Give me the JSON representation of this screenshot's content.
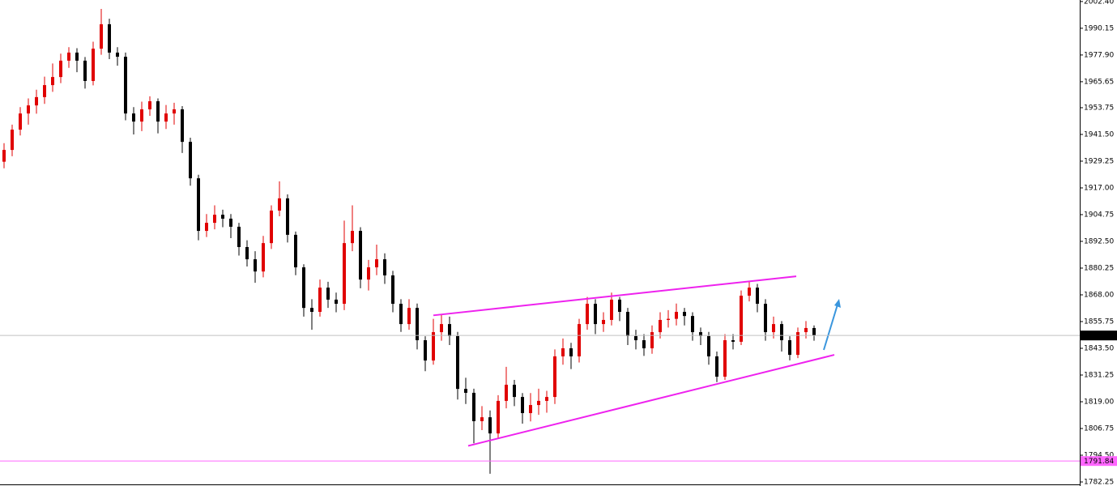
{
  "chart_data": {
    "type": "candlestick",
    "ylim": [
      1780.4,
      2003.1
    ],
    "yticks": [
      {
        "value": 2002.4,
        "label": "2002.40"
      },
      {
        "value": 1990.15,
        "label": "1990.15"
      },
      {
        "value": 1977.9,
        "label": "1977.90"
      },
      {
        "value": 1965.65,
        "label": "1965.65"
      },
      {
        "value": 1953.75,
        "label": "1953.75"
      },
      {
        "value": 1941.5,
        "label": "1941.50"
      },
      {
        "value": 1929.25,
        "label": "1929.25"
      },
      {
        "value": 1917.0,
        "label": "1917.00"
      },
      {
        "value": 1904.75,
        "label": "1904.75"
      },
      {
        "value": 1892.5,
        "label": "1892.50"
      },
      {
        "value": 1880.25,
        "label": "1880.25"
      },
      {
        "value": 1868.0,
        "label": "1868.00"
      },
      {
        "value": 1855.75,
        "label": "1855.75"
      },
      {
        "value": 1843.5,
        "label": "1843.50"
      },
      {
        "value": 1831.25,
        "label": "1831.25"
      },
      {
        "value": 1819.0,
        "label": "1819.00"
      },
      {
        "value": 1806.75,
        "label": "1806.75"
      },
      {
        "value": 1794.5,
        "label": "1794.50"
      },
      {
        "value": 1782.25,
        "label": "1782.25"
      }
    ],
    "up_color": "#e00000",
    "down_color": "#000000",
    "open": [
      1929.0,
      1934.4,
      1943.7,
      1951.1,
      1954.8,
      1958.6,
      1964.1,
      1967.8,
      1975.3,
      1979.0,
      1975.3,
      1966.0,
      1980.8,
      1992.0,
      1979.0,
      1977.1,
      1951.1,
      1947.4,
      1953.0,
      1956.7,
      1947.4,
      1951.1,
      1953.0,
      1938.1,
      1921.4,
      1897.3,
      1901.0,
      1904.7,
      1902.9,
      1899.2,
      1889.9,
      1884.3,
      1878.7,
      1891.7,
      1906.6,
      1912.2,
      1895.5,
      1880.6,
      1862.0,
      1860.2,
      1871.3,
      1865.8,
      1863.9,
      1891.7,
      1897.3,
      1875.0,
      1880.6,
      1884.3,
      1876.9,
      1863.9,
      1854.6,
      1862.0,
      1847.2,
      1837.9,
      1850.9,
      1854.6,
      1849.1,
      1824.9,
      1823.1,
      1810.1,
      1811.9,
      1804.5,
      1819.4,
      1826.8,
      1821.2,
      1813.8,
      1817.5,
      1819.4,
      1821.2,
      1839.8,
      1843.5,
      1839.8,
      1854.6,
      1863.9,
      1854.6,
      1856.5,
      1865.8,
      1860.2,
      1849.1,
      1847.2,
      1843.5,
      1850.9,
      1856.5,
      1857.0,
      1860.2,
      1858.3,
      1850.9,
      1849.1,
      1839.8,
      1830.5,
      1847.2,
      1846.5,
      1867.6,
      1871.3,
      1863.9,
      1850.9,
      1854.6,
      1847.2,
      1840.5,
      1850.9,
      1852.8
    ],
    "high": [
      1937.5,
      1946.0,
      1954.0,
      1958.0,
      1962.0,
      1968.0,
      1974.0,
      1978.5,
      1981.5,
      1981.0,
      1977.0,
      1984.0,
      1999.0,
      1994.5,
      1981.5,
      1979.0,
      1954.0,
      1956.5,
      1959.0,
      1958.0,
      1955.0,
      1956.0,
      1954.5,
      1940.0,
      1923.0,
      1905.0,
      1909.0,
      1907.0,
      1905.0,
      1901.0,
      1893.0,
      1888.0,
      1895.0,
      1909.0,
      1920.0,
      1914.0,
      1897.0,
      1882.0,
      1866.0,
      1875.0,
      1874.0,
      1869.0,
      1902.0,
      1909.0,
      1899.0,
      1884.0,
      1891.0,
      1887.0,
      1879.0,
      1866.0,
      1866.0,
      1864.0,
      1849.0,
      1857.0,
      1859.0,
      1858.0,
      1851.0,
      1830.0,
      1825.0,
      1817.0,
      1815.0,
      1822.0,
      1835.0,
      1829.0,
      1823.0,
      1823.0,
      1825.0,
      1824.0,
      1843.0,
      1848.0,
      1846.0,
      1857.0,
      1867.0,
      1866.0,
      1860.0,
      1869.0,
      1867.0,
      1862.0,
      1852.0,
      1850.0,
      1854.0,
      1860.0,
      1861.0,
      1864.0,
      1862.0,
      1860.0,
      1853.0,
      1851.0,
      1842.0,
      1850.0,
      1850.0,
      1870.0,
      1874.0,
      1873.0,
      1866.0,
      1858.0,
      1856.0,
      1849.0,
      1853.0,
      1856.0,
      1854.0
    ],
    "low": [
      1926.0,
      1931.5,
      1941.0,
      1946.0,
      1951.0,
      1955.5,
      1961.0,
      1965.0,
      1972.0,
      1970.0,
      1962.5,
      1964.0,
      1978.0,
      1976.0,
      1973.0,
      1948.0,
      1941.5,
      1943.0,
      1950.0,
      1942.0,
      1944.0,
      1946.0,
      1933.0,
      1918.0,
      1893.0,
      1894.5,
      1898.0,
      1899.0,
      1894.0,
      1886.0,
      1881.0,
      1873.5,
      1876.0,
      1889.0,
      1904.0,
      1892.0,
      1877.0,
      1858.0,
      1852.0,
      1858.0,
      1862.0,
      1860.0,
      1861.0,
      1888.0,
      1871.0,
      1870.0,
      1877.0,
      1873.0,
      1860.0,
      1851.0,
      1852.0,
      1843.0,
      1833.0,
      1836.0,
      1847.0,
      1845.0,
      1820.0,
      1818.0,
      1800.0,
      1806.0,
      1786.0,
      1802.0,
      1816.0,
      1817.0,
      1809.0,
      1810.0,
      1813.0,
      1814.0,
      1818.0,
      1836.0,
      1834.0,
      1837.0,
      1852.0,
      1850.0,
      1851.0,
      1854.0,
      1856.0,
      1845.0,
      1843.0,
      1840.0,
      1841.0,
      1848.0,
      1853.0,
      1854.0,
      1854.0,
      1847.0,
      1845.0,
      1836.0,
      1828.0,
      1829.0,
      1843.0,
      1845.0,
      1865.0,
      1860.0,
      1847.0,
      1848.0,
      1842.0,
      1838.0,
      1839.0,
      1848.0,
      1847.0
    ],
    "close": [
      1934.4,
      1943.7,
      1951.1,
      1954.8,
      1958.6,
      1964.1,
      1967.8,
      1975.3,
      1979.0,
      1975.3,
      1966.0,
      1980.8,
      1992.0,
      1979.0,
      1977.1,
      1951.1,
      1947.4,
      1953.0,
      1956.7,
      1947.4,
      1951.1,
      1953.0,
      1938.1,
      1921.4,
      1897.3,
      1901.0,
      1904.7,
      1902.9,
      1899.2,
      1889.9,
      1884.3,
      1878.7,
      1891.7,
      1906.6,
      1912.2,
      1895.5,
      1880.6,
      1862.0,
      1860.2,
      1871.3,
      1865.8,
      1863.9,
      1891.7,
      1897.3,
      1875.0,
      1880.6,
      1884.3,
      1876.9,
      1863.9,
      1854.6,
      1862.0,
      1847.2,
      1837.9,
      1850.9,
      1854.6,
      1849.1,
      1824.9,
      1823.1,
      1810.1,
      1811.9,
      1804.5,
      1819.4,
      1826.8,
      1821.2,
      1813.8,
      1817.5,
      1819.4,
      1821.2,
      1839.8,
      1843.5,
      1839.8,
      1854.6,
      1863.9,
      1854.6,
      1856.5,
      1865.8,
      1860.2,
      1849.1,
      1847.2,
      1843.5,
      1850.9,
      1856.5,
      1857.0,
      1860.2,
      1858.3,
      1850.9,
      1849.1,
      1839.8,
      1830.5,
      1847.2,
      1846.5,
      1867.6,
      1871.3,
      1863.9,
      1850.9,
      1854.6,
      1847.2,
      1840.5,
      1850.9,
      1852.8,
      1849.37
    ],
    "current_price": {
      "value": 1849.37,
      "label": "1849.37",
      "color": "#c0c0c0"
    },
    "level": {
      "value": 1791.84,
      "label": "1791.84",
      "color": "#ff66ff"
    },
    "trendlines": [
      {
        "color": "#ee22ee",
        "points": [
          [
            53,
            1858.6
          ],
          [
            97.8,
            1876.5
          ]
        ]
      },
      {
        "color": "#ee22ee",
        "points": [
          [
            57.3,
            1798.8
          ],
          [
            102.5,
            1840.5
          ]
        ]
      }
    ]
  }
}
